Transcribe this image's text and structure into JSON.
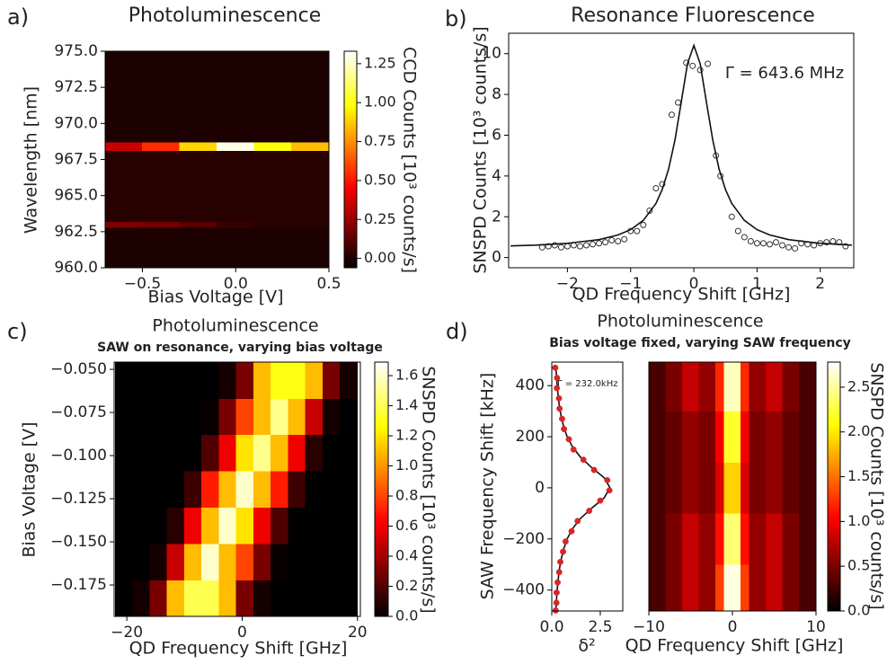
{
  "chart_data": [
    {
      "type": "heatmap",
      "panel": "a)",
      "title": "Photoluminescence",
      "x_label": "Bias Voltage [V]",
      "y_label": "Wavelength [nm]",
      "colorbar_label": "CCD Counts [10³ counts/s]",
      "colormap": "hot",
      "xlim": [
        -0.7,
        0.5
      ],
      "ylim": [
        960,
        975
      ],
      "xticks": [
        {
          "value": -0.5,
          "label": "−0.5"
        },
        {
          "value": 0,
          "label": "0.0"
        },
        {
          "value": 0.5,
          "label": "0.5"
        }
      ],
      "yticks": [
        {
          "value": 960,
          "label": "960.0"
        },
        {
          "value": 962.5,
          "label": "962.5"
        },
        {
          "value": 965,
          "label": "965.0"
        },
        {
          "value": 967.5,
          "label": "967.5"
        },
        {
          "value": 970,
          "label": "970.0"
        },
        {
          "value": 972.5,
          "label": "972.5"
        },
        {
          "value": 975,
          "label": "975.0"
        }
      ],
      "xbins": [
        -0.7,
        -0.5,
        -0.3,
        -0.1,
        0.1,
        0.3,
        0.5
      ],
      "ybins": [
        960,
        962.8,
        963.2,
        968.1,
        968.7,
        975
      ],
      "z": [
        [
          0,
          0,
          0,
          0,
          0,
          0
        ],
        [
          0.2,
          0.18,
          0.12,
          0.05,
          0.02,
          0.02
        ],
        [
          0.02,
          0.02,
          0.02,
          0.02,
          0.02,
          0.02
        ],
        [
          0.35,
          0.55,
          0.9,
          1.3,
          1.0,
          0.85
        ],
        [
          0,
          0,
          0,
          0,
          0,
          0
        ]
      ],
      "zlim": [
        -0.06,
        1.33
      ],
      "zticks": [
        {
          "value": 0,
          "label": "0.00"
        },
        {
          "value": 0.25,
          "label": "0.25"
        },
        {
          "value": 0.5,
          "label": "0.50"
        },
        {
          "value": 0.75,
          "label": "0.75"
        },
        {
          "value": 1,
          "label": "1.00"
        },
        {
          "value": 1.25,
          "label": "1.25"
        }
      ]
    },
    {
      "type": "scatter",
      "panel": "b)",
      "title": "Resonance Fluorescence",
      "x_label": "QD Frequency Shift [GHz]",
      "y_label": "SNSPD Counts [10³ counts/s]",
      "annotation": "Γ  = 643.6 MHz",
      "xlim": [
        -2.93,
        2.53
      ],
      "ylim": [
        -0.5,
        11
      ],
      "xticks": [
        {
          "value": -2,
          "label": "−2"
        },
        {
          "value": -1,
          "label": "−1"
        },
        0,
        1,
        2
      ],
      "yticks": [
        0,
        2,
        4,
        6,
        8,
        10
      ],
      "series": [
        {
          "marker": "open",
          "color": "#333333",
          "x": [
            -2.4,
            -2.3,
            -2.2,
            -2.1,
            -2.0,
            -1.9,
            -1.8,
            -1.7,
            -1.6,
            -1.5,
            -1.4,
            -1.3,
            -1.2,
            -1.1,
            -1.0,
            -0.9,
            -0.8,
            -0.7,
            -0.6,
            -0.5,
            -0.35,
            -0.25,
            -0.12,
            -0.02,
            0.1,
            0.22,
            0.35,
            0.42,
            0.6,
            0.7,
            0.8,
            0.9,
            1.0,
            1.1,
            1.2,
            1.3,
            1.4,
            1.5,
            1.6,
            1.7,
            1.8,
            1.9,
            2.0,
            2.1,
            2.2,
            2.3,
            2.4
          ],
          "values": [
            0.5,
            0.55,
            0.6,
            0.5,
            0.55,
            0.6,
            0.55,
            0.6,
            0.65,
            0.7,
            0.75,
            0.85,
            0.8,
            0.9,
            1.3,
            1.3,
            1.6,
            2.3,
            3.4,
            3.6,
            7.0,
            7.6,
            9.55,
            9.4,
            9.2,
            9.5,
            5.0,
            4.0,
            2.0,
            1.3,
            1.0,
            0.8,
            0.7,
            0.7,
            0.65,
            0.75,
            0.6,
            0.5,
            0.45,
            0.7,
            0.65,
            0.6,
            0.7,
            0.75,
            0.8,
            0.75,
            0.55
          ]
        },
        {
          "marker": "line",
          "color": "#111111",
          "x": [
            -2.9,
            -2.5,
            -2,
            -1.5,
            -1.2,
            -1,
            -0.8,
            -0.6,
            -0.5,
            -0.4,
            -0.3,
            -0.2,
            -0.1,
            0,
            0.1,
            0.2,
            0.3,
            0.4,
            0.5,
            0.6,
            0.8,
            1,
            1.2,
            1.5,
            2,
            2.5
          ],
          "values": [
            0.57,
            0.61,
            0.7,
            0.88,
            1.11,
            1.37,
            1.82,
            2.65,
            3.34,
            4.33,
            5.75,
            7.61,
            9.51,
            10.4,
            9.51,
            7.61,
            5.75,
            4.33,
            3.34,
            2.65,
            1.82,
            1.37,
            1.11,
            0.88,
            0.7,
            0.61
          ]
        }
      ]
    },
    {
      "type": "heatmap",
      "panel": "c)",
      "title": "Photoluminescence",
      "subtitle": "SAW on resonance, varying bias voltage",
      "x_label": "QD Frequency Shift [GHz]",
      "y_label": "Bias Voltage [V]",
      "colorbar_label": "SNSPD Counts [10³ counts/s]",
      "colormap": "hot",
      "xlim": [
        -22.2,
        20.5
      ],
      "ylim": [
        -0.1932,
        -0.0458
      ],
      "xticks": [
        {
          "value": -20,
          "label": "−20"
        },
        0,
        20
      ],
      "yticks": [
        {
          "value": -0.05,
          "label": "−0.050"
        },
        {
          "value": -0.075,
          "label": "−0.075"
        },
        {
          "value": -0.1,
          "label": "−0.100"
        },
        {
          "value": -0.125,
          "label": "−0.125"
        },
        {
          "value": -0.15,
          "label": "−0.150"
        },
        {
          "value": -0.175,
          "label": "−0.175"
        }
      ],
      "xbins": [
        -22,
        -19,
        -16,
        -13,
        -10,
        -7,
        -4,
        -1,
        2,
        5,
        8,
        11,
        14,
        17,
        20
      ],
      "ybins": [
        -0.1932,
        -0.1721,
        -0.1511,
        -0.13,
        -0.109,
        -0.0879,
        -0.0669,
        -0.0458
      ],
      "z": [
        [
          0,
          0.05,
          0.3,
          1.1,
          1.4,
          1.4,
          1.1,
          0.3,
          0.05,
          0,
          0,
          0,
          0,
          0
        ],
        [
          0,
          0,
          0.05,
          0.5,
          1.1,
          1.6,
          1.1,
          0.8,
          0.3,
          0.02,
          0,
          0,
          0,
          0
        ],
        [
          0,
          0,
          0,
          0.1,
          0.6,
          1.1,
          1.6,
          1.2,
          0.6,
          0.2,
          0,
          0,
          0,
          0
        ],
        [
          0,
          0,
          0,
          0,
          0.15,
          0.7,
          1.1,
          1.6,
          1.1,
          0.7,
          0.15,
          0,
          0,
          0
        ],
        [
          0,
          0,
          0,
          0,
          0,
          0.2,
          0.6,
          1.2,
          1.5,
          1.1,
          0.6,
          0.1,
          0,
          0
        ],
        [
          0,
          0,
          0,
          0,
          0,
          0.02,
          0.3,
          0.8,
          1.1,
          1.5,
          1.1,
          0.5,
          0.05,
          0
        ],
        [
          0,
          0,
          0,
          0,
          0,
          0,
          0.05,
          0.3,
          1.1,
          1.3,
          1.3,
          1.1,
          0.3,
          0.05
        ]
      ],
      "zlim": [
        0,
        1.69
      ],
      "zticks": [
        {
          "value": 0,
          "label": "0.0"
        },
        0.2,
        0.4,
        0.6,
        0.8,
        {
          "value": 1,
          "label": "1.0"
        },
        1.2,
        1.4,
        1.6
      ]
    },
    {
      "type": "scatter",
      "panel": "d)",
      "x_label": "δ²",
      "y_label": "SAW Frequency Shift [kHz]",
      "annotation": "Γ = 232.0kHz",
      "xlim": [
        0,
        3.66
      ],
      "ylim": [
        -482,
        492
      ],
      "xticks": [
        {
          "value": 0,
          "label": "0.0"
        },
        2.5
      ],
      "yticks": [
        {
          "value": -400,
          "label": "−400"
        },
        {
          "value": -200,
          "label": "−200"
        },
        0,
        200,
        400
      ],
      "series": [
        {
          "marker": "line",
          "color": "#111111",
          "x": [
            0.21,
            0.24,
            0.28,
            0.33,
            0.39,
            0.48,
            0.61,
            0.79,
            1.07,
            1.48,
            2.05,
            2.69,
            3.0,
            2.69,
            2.05,
            1.48,
            1.07,
            0.79,
            0.61,
            0.48,
            0.39,
            0.33,
            0.28,
            0.24,
            0.21
          ],
          "values": [
            480,
            440,
            400,
            360,
            320,
            280,
            240,
            200,
            160,
            120,
            80,
            40,
            0,
            -40,
            -80,
            -120,
            -160,
            -200,
            -240,
            -280,
            -320,
            -360,
            -400,
            -440,
            -480
          ]
        },
        {
          "marker": "filled",
          "color": "#d62728",
          "x": [
            0.18,
            0.27,
            0.26,
            0.37,
            0.4,
            0.53,
            0.63,
            0.88,
            1.12,
            1.63,
            2.18,
            2.86,
            2.97,
            2.5,
            1.93,
            1.33,
            1.02,
            0.71,
            0.58,
            0.44,
            0.38,
            0.3,
            0.25,
            0.24,
            0.2
          ],
          "values": [
            470,
            430,
            390,
            350,
            310,
            270,
            230,
            190,
            150,
            110,
            70,
            30,
            -10,
            -50,
            -90,
            -130,
            -170,
            -210,
            -250,
            -290,
            -330,
            -370,
            -410,
            -450,
            -480
          ]
        }
      ]
    },
    {
      "type": "heatmap",
      "title": "Photoluminescence",
      "subtitle": "Bias voltage fixed, varying SAW frequency",
      "x_label": "QD Frequency Shift [GHz]",
      "colorbar_label": "SNSPD Counts [10³ counts/s]",
      "colormap": "hot",
      "xlim": [
        -10,
        10
      ],
      "ylim": [
        -482,
        492
      ],
      "xticks": [
        {
          "value": -10,
          "label": "−10"
        },
        0,
        10
      ],
      "xbins": [
        -10,
        -8,
        -6,
        -4,
        -2,
        -1,
        1,
        2,
        4,
        6,
        8,
        10
      ],
      "ybins": [
        -480,
        -300,
        -100,
        100,
        300,
        490
      ],
      "z": [
        [
          0.3,
          0.5,
          0.8,
          0.6,
          1.3,
          2.7,
          1.3,
          0.6,
          0.8,
          0.5,
          0.3
        ],
        [
          0.3,
          0.5,
          0.8,
          0.6,
          1.1,
          2.4,
          1.1,
          0.6,
          0.8,
          0.5,
          0.3
        ],
        [
          0.3,
          0.4,
          0.6,
          0.5,
          0.9,
          1.9,
          0.9,
          0.5,
          0.6,
          0.4,
          0.3
        ],
        [
          0.3,
          0.4,
          0.6,
          0.5,
          1.0,
          2.2,
          1.0,
          0.5,
          0.6,
          0.4,
          0.3
        ],
        [
          0.3,
          0.5,
          0.8,
          0.6,
          1.2,
          2.6,
          1.2,
          0.6,
          0.8,
          0.5,
          0.3
        ]
      ],
      "zlim": [
        0,
        2.78
      ],
      "zticks": [
        {
          "value": 0,
          "label": "0.0"
        },
        0.5,
        {
          "value": 1,
          "label": "1.0"
        },
        1.5,
        {
          "value": 2,
          "label": "2.0"
        },
        2.5
      ]
    }
  ]
}
